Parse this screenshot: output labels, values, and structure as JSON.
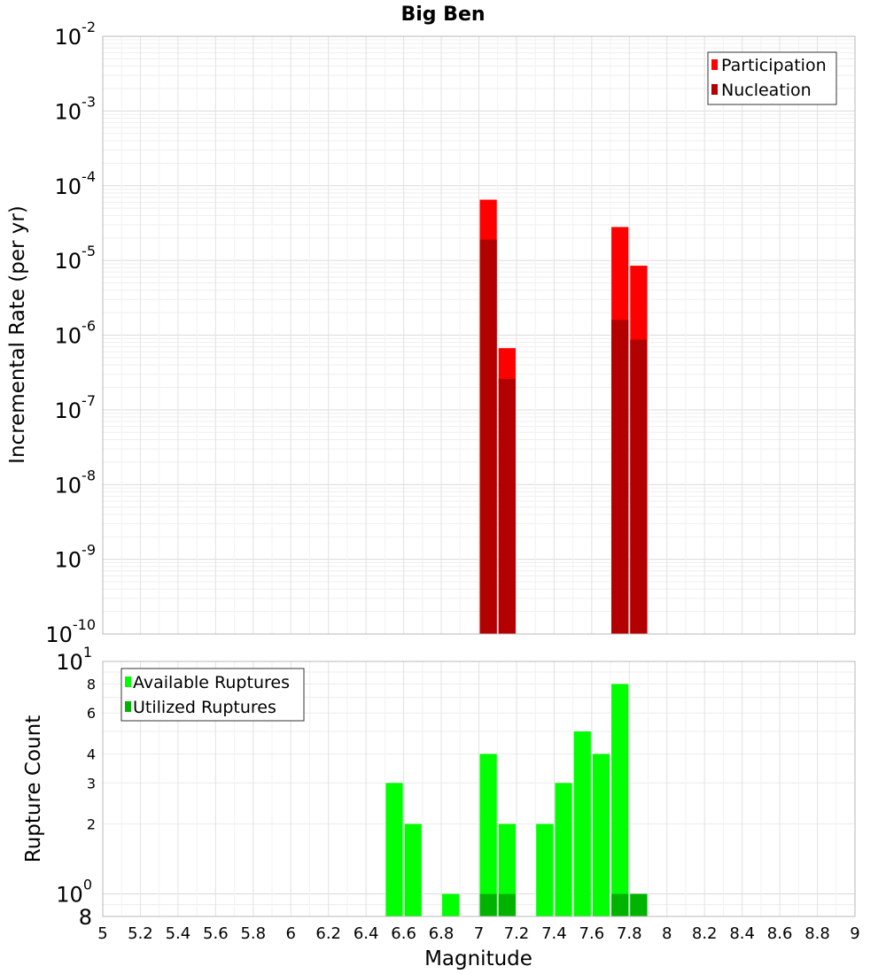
{
  "chart_data": [
    {
      "type": "bar",
      "title": "Big Ben",
      "ylabel": "Incremental Rate (per yr)",
      "xlabel": "",
      "y_scale": "log",
      "ylim": [
        1e-10,
        0.01
      ],
      "xlim": [
        5,
        9
      ],
      "grid": true,
      "legend_position": "top-right",
      "bin_width": 0.1,
      "x": [
        7.05,
        7.15,
        7.75,
        7.85
      ],
      "series": [
        {
          "name": "Participation",
          "color": "#ff0000",
          "values": [
            6.5e-05,
            6.7e-07,
            2.8e-05,
            8.5e-06
          ]
        },
        {
          "name": "Nucleation",
          "color": "#b30000",
          "values": [
            1.9e-05,
            2.6e-07,
            1.6e-06,
            8.7e-07
          ]
        }
      ],
      "y_ticks": [
        {
          "base": "10",
          "exp": "-10"
        },
        {
          "base": "10",
          "exp": "-9"
        },
        {
          "base": "10",
          "exp": "-8"
        },
        {
          "base": "10",
          "exp": "-7"
        },
        {
          "base": "10",
          "exp": "-6"
        },
        {
          "base": "10",
          "exp": "-5"
        },
        {
          "base": "10",
          "exp": "-4"
        },
        {
          "base": "10",
          "exp": "-3"
        },
        {
          "base": "10",
          "exp": "-2"
        }
      ]
    },
    {
      "type": "bar",
      "ylabel": "Rupture Count",
      "xlabel": "Magnitude",
      "y_scale": "log",
      "ylim": [
        0.8,
        10
      ],
      "xlim": [
        5,
        9
      ],
      "grid": true,
      "legend_position": "top-left",
      "bin_width": 0.1,
      "x": [
        6.55,
        6.65,
        6.85,
        7.05,
        7.15,
        7.35,
        7.45,
        7.55,
        7.65,
        7.75,
        7.85
      ],
      "series": [
        {
          "name": "Available Ruptures",
          "color": "#00ff00",
          "values": [
            3,
            2,
            1,
            4,
            2,
            2,
            3,
            5,
            4,
            8,
            1
          ]
        },
        {
          "name": "Utilized Ruptures",
          "color": "#00b300",
          "values": [
            0,
            0,
            0,
            1,
            1,
            0,
            0,
            0,
            0,
            1,
            1
          ]
        }
      ],
      "y_ticks_minor": [
        "2",
        "3",
        "4",
        "6",
        "8"
      ],
      "y_ticks_major": [
        {
          "base": "10",
          "exp": "0"
        },
        {
          "base": "10",
          "exp": "1"
        }
      ],
      "y_bottom_label": "8",
      "x_ticks": [
        "5",
        "5.2",
        "5.4",
        "5.6",
        "5.8",
        "6",
        "6.2",
        "6.4",
        "6.6",
        "6.8",
        "7",
        "7.2",
        "7.4",
        "7.6",
        "7.8",
        "8",
        "8.2",
        "8.4",
        "8.6",
        "8.8",
        "9"
      ]
    }
  ]
}
